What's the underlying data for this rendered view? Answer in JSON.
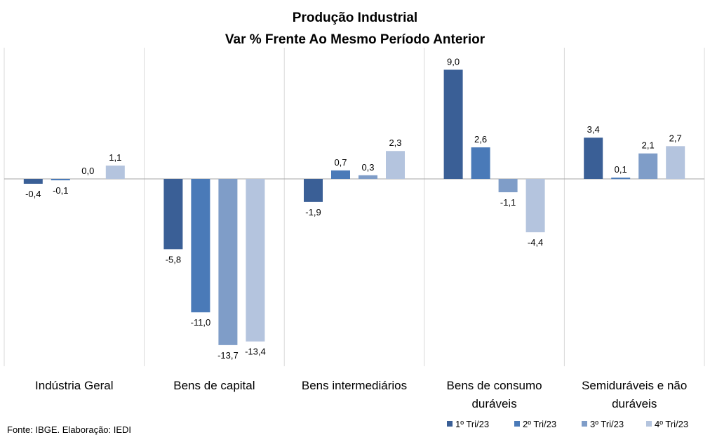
{
  "chart_data": {
    "type": "bar",
    "title": "Produção Industrial",
    "subtitle": "Var % Frente Ao Mesmo Período Anterior",
    "categories": [
      [
        "Indústria Geral"
      ],
      [
        "Bens de capital"
      ],
      [
        "Bens intermediários"
      ],
      [
        "Bens de consumo",
        "duráveis"
      ],
      [
        "Semiduráveis e não",
        "duráveis"
      ]
    ],
    "series": [
      {
        "name": "1º Tri/23",
        "color": "#3a5f96",
        "values": [
          -0.4,
          -5.8,
          -1.9,
          9.0,
          3.4
        ],
        "labels": [
          "-0,4",
          "-5,8",
          "-1,9",
          "9,0",
          "3,4"
        ]
      },
      {
        "name": "2º Tri/23",
        "color": "#4a7ab8",
        "values": [
          -0.1,
          -11.0,
          0.7,
          2.6,
          0.1
        ],
        "labels": [
          "-0,1",
          "-11,0",
          "0,7",
          "2,6",
          "0,1"
        ]
      },
      {
        "name": "3º Tri/23",
        "color": "#7f9dc8",
        "values": [
          0.0,
          -13.7,
          0.3,
          -1.1,
          2.1
        ],
        "labels": [
          "0,0",
          "-13,7",
          "0,3",
          "-1,1",
          "2,1"
        ]
      },
      {
        "name": "4º Tri/23",
        "color": "#b4c4de",
        "values": [
          1.1,
          -13.4,
          2.3,
          -4.4,
          2.7
        ],
        "labels": [
          "1,1",
          "-13,4",
          "2,3",
          "-4,4",
          "2,7"
        ]
      }
    ],
    "ylim": [
      -15,
      10.7
    ],
    "grid": false,
    "legend_position": "bottom-right",
    "source_note": "Fonte: IBGE. Elaboração: IEDI"
  }
}
